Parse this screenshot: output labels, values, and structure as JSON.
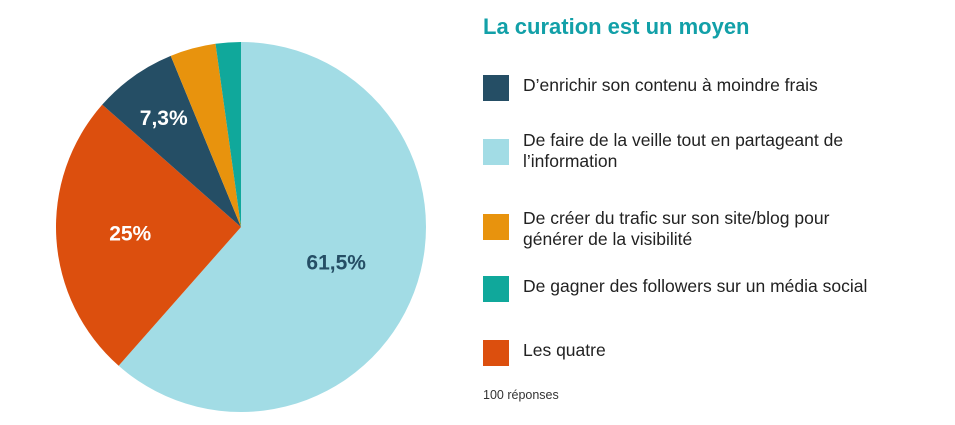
{
  "title": "La curation est un moyen",
  "note": "100 réponses",
  "legend": [
    {
      "label": "D’enrichir son contenu à moindre frais",
      "color": "#254e65"
    },
    {
      "label": "De faire de la veille tout en partageant de l’information",
      "color": "#a2dce5"
    },
    {
      "label": "De créer du trafic sur son site/blog pour générer de la visibilité",
      "color": "#e8930d"
    },
    {
      "label": "De gagner des followers sur un média social",
      "color": "#10a89b"
    },
    {
      "label": "Les quatre",
      "color": "#dc4f0e"
    }
  ],
  "chart_data": {
    "type": "pie",
    "title": "La curation est un moyen",
    "slices": [
      {
        "label": "De faire de la veille tout en partageant de l’information",
        "value": 61.5,
        "value_label": "61,5%",
        "color": "#a2dce5",
        "label_color": "#254e65"
      },
      {
        "label": "Les quatre",
        "value": 25,
        "value_label": "25%",
        "color": "#dc4f0e",
        "label_color": "#ffffff"
      },
      {
        "label": "D’enrichir son contenu à moindre frais",
        "value": 7.3,
        "value_label": "7,3%",
        "color": "#254e65",
        "label_color": "#ffffff"
      },
      {
        "label": "De créer du trafic sur son site/blog pour générer de la visibilité",
        "value": 4,
        "value_label": "",
        "color": "#e8930d",
        "label_color": "#ffffff"
      },
      {
        "label": "De gagner des followers sur un média social",
        "value": 2.2,
        "value_label": "",
        "color": "#10a89b",
        "label_color": "#ffffff"
      }
    ]
  }
}
